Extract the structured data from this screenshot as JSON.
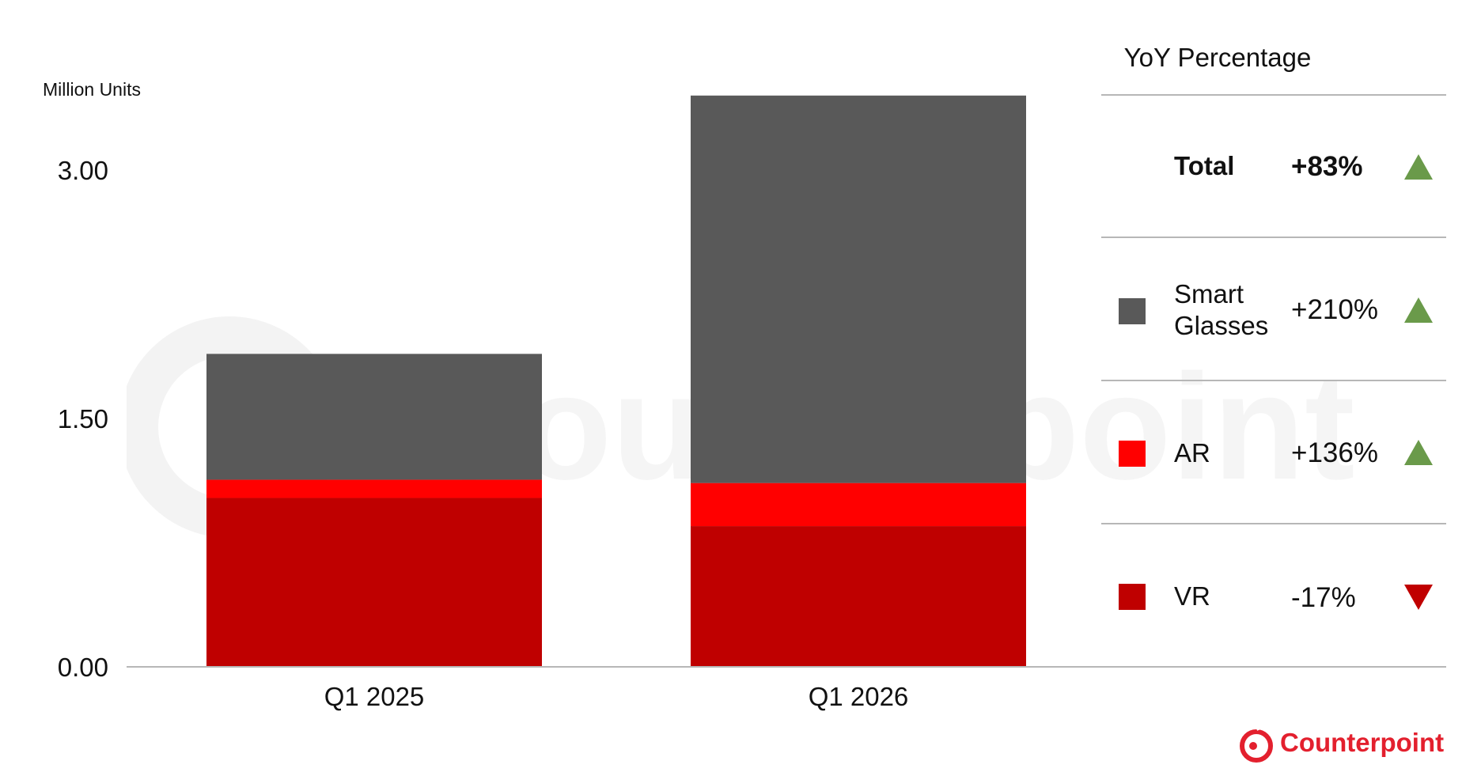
{
  "chart_data": {
    "type": "bar",
    "stacked": true,
    "categories": [
      "Q1 2025",
      "Q1 2026"
    ],
    "series": [
      {
        "name": "VR",
        "color": "#bf0000",
        "values": [
          1.02,
          0.85
        ]
      },
      {
        "name": "AR",
        "color": "#ff0000",
        "values": [
          0.11,
          0.26
        ]
      },
      {
        "name": "Smart Glasses",
        "color": "#595959",
        "values": [
          0.76,
          2.34
        ]
      }
    ],
    "ylabel": "Million Units",
    "ylim": [
      0,
      3.45
    ],
    "yticks": [
      "0.00",
      "1.50",
      "3.00"
    ],
    "grid": false
  },
  "legend": {
    "title": "YoY Percentage",
    "rows": [
      {
        "label": "Total",
        "value": "+83%",
        "direction": "up",
        "bold": true
      },
      {
        "label": "Smart Glasses",
        "label_line1": "Smart",
        "label_line2": "Glasses",
        "value": "+210%",
        "direction": "up",
        "swatch": "#595959"
      },
      {
        "label": "AR",
        "value": "+136%",
        "direction": "up",
        "swatch": "#ff0000"
      },
      {
        "label": "VR",
        "value": "-17%",
        "direction": "down",
        "swatch": "#bf0000"
      }
    ],
    "up_color": "#6a9a4a",
    "down_color": "#c00000"
  },
  "brand": {
    "name": "Counterpoint",
    "color": "#e3202e"
  }
}
